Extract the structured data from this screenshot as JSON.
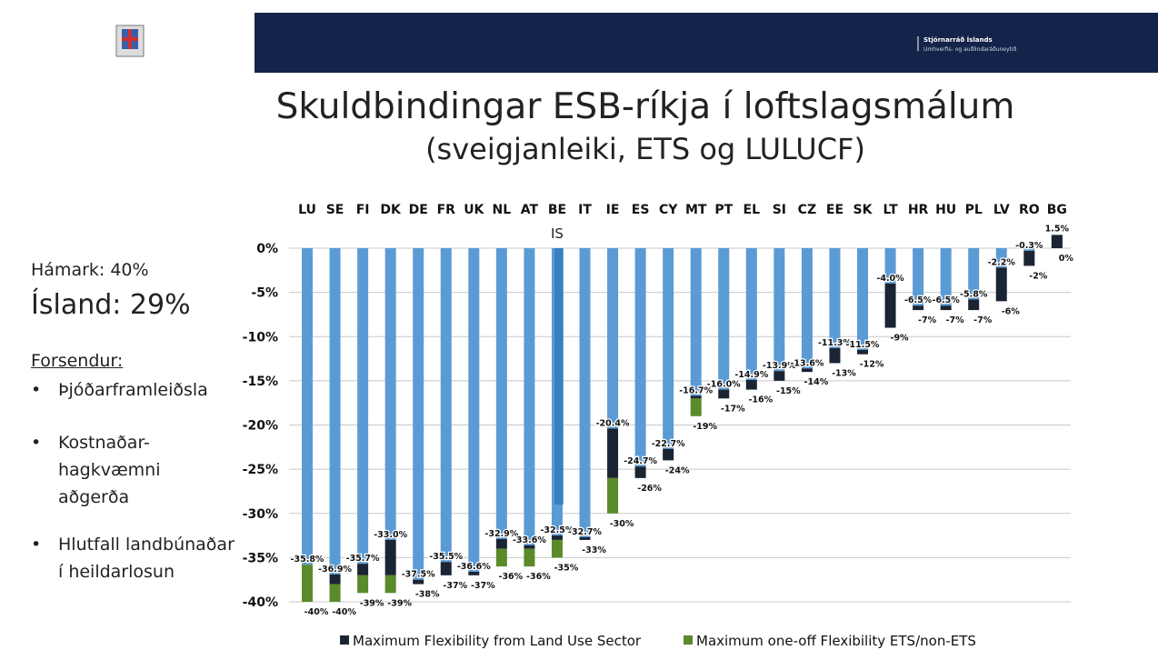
{
  "header": {
    "org": "Stjórnarráð Íslands",
    "ministry": "Umhverfis- og auðlindaráðuneytið"
  },
  "slide": {
    "title": "Skuldbindingar ESB-ríkja í loftslagsmálum",
    "subtitle": "(sveigjanleiki, ETS og LULUCF)",
    "left_panel": {
      "max": "Hámark: 40%",
      "iceland": "Ísland: 29%",
      "assumptions_title": "Forsendur:",
      "bullets": [
        "Þjóðarframleiðsla",
        "Kostnaðar-hagkvæmni aðgerða",
        "Hlutfall landbúnaðar í heildarlosun"
      ]
    }
  },
  "chart_data": {
    "type": "bar",
    "stacked": true,
    "categories": [
      "LU",
      "SE",
      "FI",
      "DK",
      "DE",
      "FR",
      "UK",
      "NL",
      "AT",
      "BE",
      "IT",
      "IE",
      "ES",
      "CY",
      "MT",
      "PT",
      "EL",
      "SI",
      "CZ",
      "EE",
      "SK",
      "LT",
      "HR",
      "HU",
      "PL",
      "LV",
      "RO",
      "BG"
    ],
    "series": [
      {
        "color": "#5b9bd5",
        "values": [
          -35.8,
          -36.9,
          -35.7,
          -33.0,
          -37.5,
          -35.5,
          -36.6,
          -32.9,
          -33.6,
          -32.5,
          -32.7,
          -20.4,
          -24.7,
          -22.7,
          -16.7,
          -16.0,
          -14.9,
          -13.9,
          -13.6,
          -11.3,
          -11.5,
          -4.0,
          -6.5,
          -6.5,
          -5.8,
          -2.2,
          -0.3,
          1.5
        ],
        "value_labels": [
          "-35.8%",
          "-36.9%",
          "-35.7%",
          "-33.0%",
          "-37.5%",
          "-35.5%",
          "-36.6%",
          "-32.9%",
          "-33.6%",
          "-32.5%",
          "-32.7%",
          "-20.4%",
          "-24.7%",
          "-22.7%",
          "-16.7%",
          "-16.0%",
          "-14.9%",
          "-13.9%",
          "-13.6%",
          "-11.3%",
          "-11.5%",
          "-4.0%",
          "-6.5%",
          "-6.5%",
          "-5.8%",
          "-2.2%",
          "-0.3%",
          "1.5%"
        ]
      },
      {
        "name": "Maximum Flexibility from Land Use Sector",
        "color": "#1b2433",
        "values": [
          0,
          -1.1,
          -1.3,
          -4,
          -0.5,
          -1.5,
          -0.4,
          -1.1,
          -0.4,
          -0.5,
          -0.3,
          -5.6,
          -1.3,
          -1.3,
          -0.3,
          -1,
          -1.1,
          -1.1,
          -0.4,
          -1.7,
          -0.5,
          -5,
          -0.5,
          -0.5,
          -1.2,
          -3.8,
          -1.7,
          -1.5
        ]
      },
      {
        "name": "Maximum one-off Flexibility ETS/non-ETS",
        "color": "#5a8a2a",
        "values": [
          -4.2,
          -2,
          -2,
          -2,
          0,
          0,
          0,
          -2,
          -2,
          -2,
          0,
          -4,
          0,
          0,
          -2,
          0,
          0,
          0,
          0,
          0,
          0,
          0,
          0,
          0,
          0,
          0,
          0,
          0
        ]
      }
    ],
    "totals": [
      -40,
      -40,
      -39,
      -39,
      -38,
      -37,
      -37,
      -36,
      -36,
      -35,
      -33,
      -30,
      -26,
      -24,
      -19,
      -17,
      -16,
      -15,
      -14,
      -13,
      -12,
      -9,
      -7,
      -7,
      -7,
      -6,
      -2,
      0
    ],
    "total_labels": [
      "-40%",
      "-40%",
      "-39%",
      "-39%",
      "-38%",
      "-37%",
      "-37%",
      "-36%",
      "-36%",
      "-35%",
      "-33%",
      "-30%",
      "-26%",
      "-24%",
      "-19%",
      "-17%",
      "-16%",
      "-15%",
      "-14%",
      "-13%",
      "-12%",
      "-9%",
      "-7%",
      "-7%",
      "-7%",
      "-6%",
      "-2%",
      "0%"
    ],
    "iceland_bar": {
      "label": "IS",
      "category": "BE",
      "value": -29,
      "color": "#2e75b6"
    },
    "ylim": [
      -40,
      0
    ],
    "yticks": [
      {
        "value": 0,
        "label": "0%"
      },
      {
        "value": -5,
        "label": "-5%"
      },
      {
        "value": -10,
        "label": "-10%"
      },
      {
        "value": -15,
        "label": "-15%"
      },
      {
        "value": -20,
        "label": "-20%"
      },
      {
        "value": -25,
        "label": "-25%"
      },
      {
        "value": -30,
        "label": "-30%"
      },
      {
        "value": -35,
        "label": "-35%"
      },
      {
        "value": -40,
        "label": "-40%"
      }
    ],
    "grid": true
  }
}
